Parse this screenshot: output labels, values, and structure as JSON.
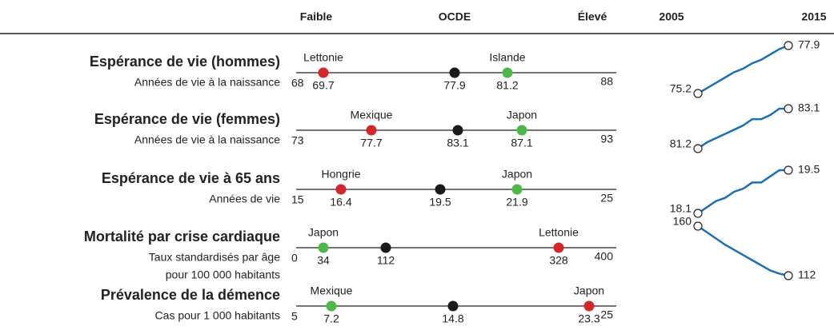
{
  "header": {
    "low": "Faible",
    "oecd": "OCDE",
    "high": "Élevé",
    "start": "2005",
    "end": "2015"
  },
  "rows": [
    {
      "title": "Espérance de vie (hommes)",
      "subtitle": [
        "Années de vie à la naissance"
      ],
      "min": 68,
      "max": 88,
      "left": {
        "name": "Lettonie",
        "value": 69.7,
        "color": "#d7262b"
      },
      "oecd": 77.9,
      "right": {
        "name": "Islande",
        "value": 81.2,
        "color": "#4cb848"
      },
      "trend": [
        75.2,
        75.5,
        75.8,
        76.1,
        76.4,
        76.6,
        76.9,
        77.1,
        77.4,
        77.7,
        77.9
      ]
    },
    {
      "title": "Espérance de vie (femmes)",
      "subtitle": [
        "Années de vie à la naissance"
      ],
      "min": 73,
      "max": 93,
      "left": {
        "name": "Mexique",
        "value": 77.7,
        "color": "#d7262b"
      },
      "oecd": 83.1,
      "right": {
        "name": "Japon",
        "value": 87.1,
        "color": "#4cb848"
      },
      "trend": [
        81.2,
        81.5,
        81.7,
        81.9,
        82.1,
        82.3,
        82.6,
        82.6,
        82.8,
        83.1,
        83.1
      ]
    },
    {
      "title": "Espérance de vie à 65 ans",
      "subtitle": [
        "Années de vie"
      ],
      "min": 15,
      "max": 25,
      "left": {
        "name": "Hongrie",
        "value": 16.4,
        "color": "#d7262b"
      },
      "oecd": 19.5,
      "right": {
        "name": "Japon",
        "value": 21.9,
        "color": "#4cb848"
      },
      "trend": [
        18.1,
        18.3,
        18.5,
        18.6,
        18.8,
        18.9,
        19.1,
        19.1,
        19.3,
        19.5,
        19.5
      ]
    },
    {
      "title": "Mortalité par crise cardiaque",
      "subtitle": [
        "Taux standardisés par âge",
        "pour 100 000 habitants"
      ],
      "min": 0,
      "max": 400,
      "left": {
        "name": "Japon",
        "value": 34,
        "color": "#4cb848"
      },
      "oecd": 112,
      "right": {
        "name": "Lettonie",
        "value": 328,
        "color": "#d7262b"
      },
      "trend": [
        160,
        154,
        148,
        142,
        137,
        132,
        127,
        122,
        117,
        114,
        112
      ]
    },
    {
      "title": "Prévalence de la démence",
      "subtitle": [
        "Cas pour 1 000 habitants"
      ],
      "min": 5,
      "max": 25,
      "left": {
        "name": "Mexique",
        "value": 7.2,
        "color": "#4cb848"
      },
      "oecd": 14.8,
      "right": {
        "name": "Japon",
        "value": 23.3,
        "color": "#d7262b"
      }
    }
  ]
}
